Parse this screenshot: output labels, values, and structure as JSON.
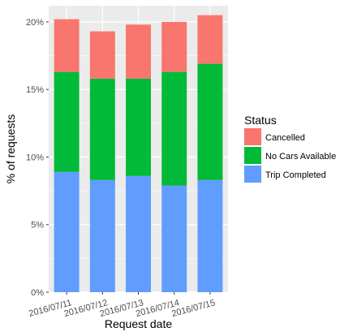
{
  "chart_data": {
    "type": "bar",
    "stacked": true,
    "categories": [
      "2016/07/11",
      "2016/07/12",
      "2016/07/13",
      "2016/07/14",
      "2016/07/15"
    ],
    "series": [
      {
        "name": "Trip Completed",
        "color": "#619CFF",
        "values": [
          8.9,
          8.3,
          8.6,
          7.9,
          8.3
        ]
      },
      {
        "name": "No Cars Available",
        "color": "#00BA38",
        "values": [
          7.4,
          7.5,
          7.2,
          8.4,
          8.6
        ]
      },
      {
        "name": "Cancelled",
        "color": "#F8766D",
        "values": [
          3.9,
          3.5,
          4.0,
          3.7,
          3.6
        ]
      }
    ],
    "xlabel": "Request date",
    "ylabel": "% of requests",
    "ylim": [
      0,
      21.2
    ],
    "yticks": [
      0,
      5,
      10,
      15,
      20
    ],
    "ytick_labels": [
      "0%",
      "5%",
      "10%",
      "15%",
      "20%"
    ],
    "grid": true,
    "legend": {
      "title": "Status",
      "placement": "right",
      "entries": [
        "Cancelled",
        "No Cars Available",
        "Trip Completed"
      ]
    },
    "panel_background": "#EBEBEB",
    "gridline_color": "#FFFFFF"
  }
}
